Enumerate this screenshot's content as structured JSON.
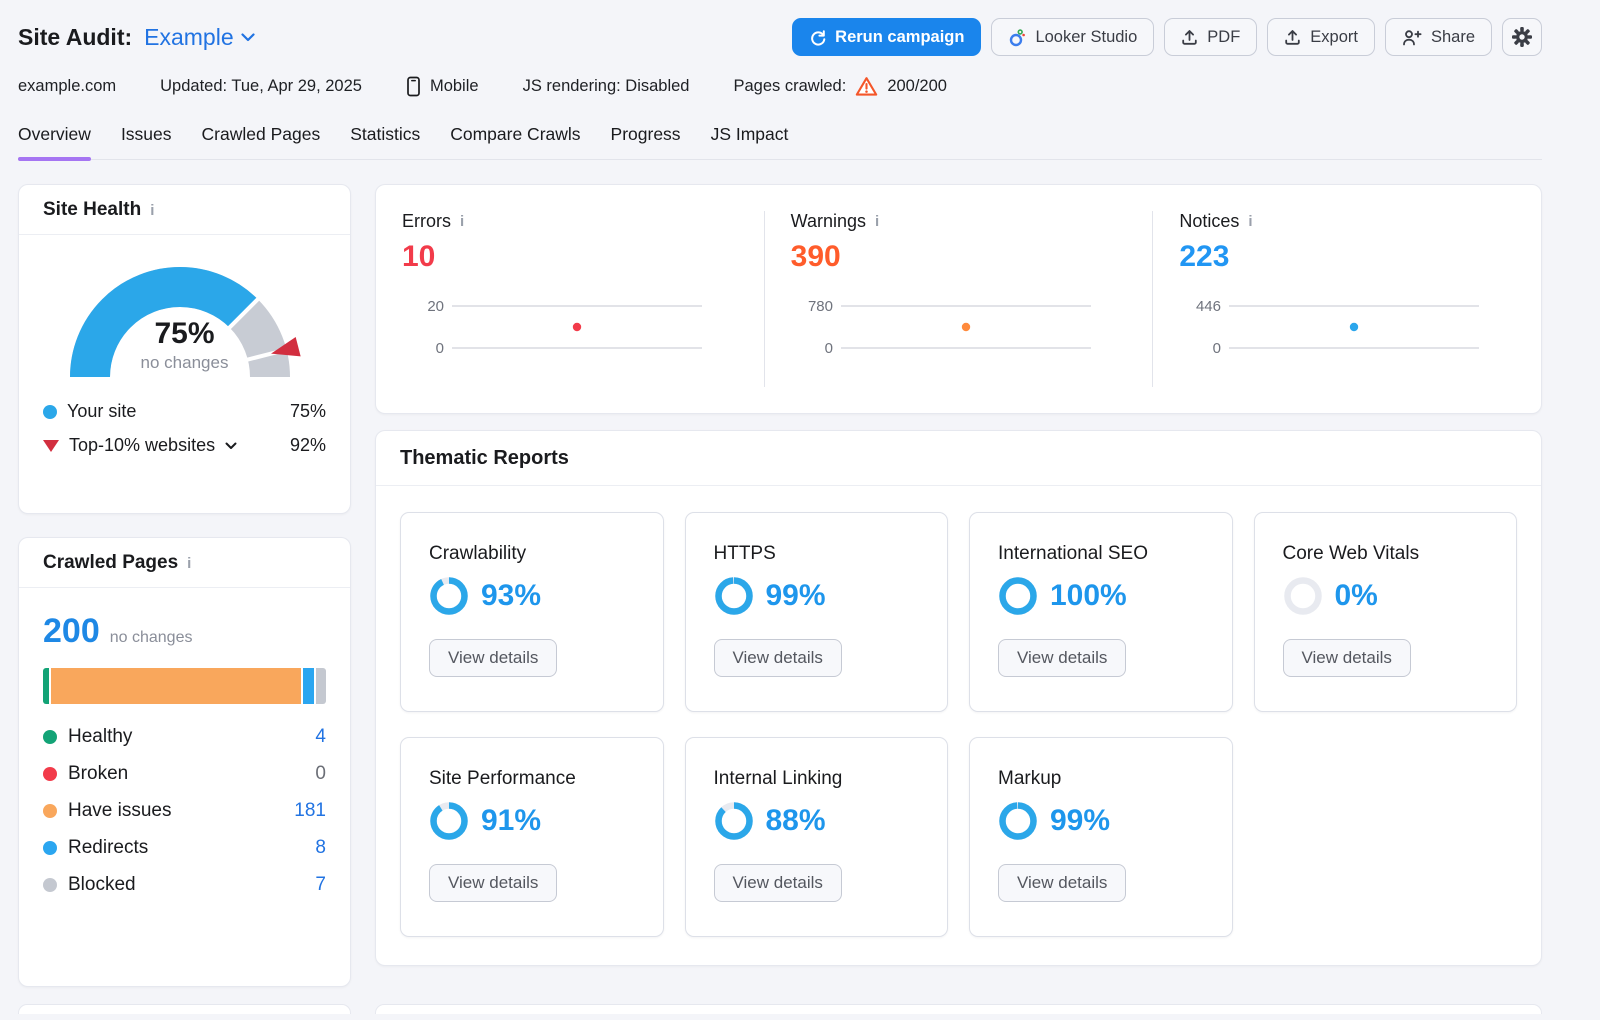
{
  "colors": {
    "primary_blue": "#1a85ec",
    "link_blue": "#2173e2",
    "sky_blue": "#2ba7e9",
    "gauge_track": "#c8ccd4",
    "donut_track": "#e8eaf0",
    "benchmark_red": "#d22e3f",
    "tab_purple": "#a575f2"
  },
  "header": {
    "title": "Site Audit:",
    "campaign": "Example",
    "domain": "example.com",
    "updated": "Updated: Tue, Apr 29, 2025",
    "device": "Mobile",
    "js_rendering": "JS rendering: Disabled",
    "pages_crawled_label": "Pages crawled:",
    "pages_crawled_value": "200/200",
    "buttons": {
      "rerun": "Rerun campaign",
      "looker": "Looker Studio",
      "pdf": "PDF",
      "export": "Export",
      "share": "Share"
    }
  },
  "tabs": [
    {
      "label": "Overview",
      "active": true
    },
    {
      "label": "Issues",
      "active": false
    },
    {
      "label": "Crawled Pages",
      "active": false
    },
    {
      "label": "Statistics",
      "active": false
    },
    {
      "label": "Compare Crawls",
      "active": false
    },
    {
      "label": "Progress",
      "active": false
    },
    {
      "label": "JS Impact",
      "active": false
    }
  ],
  "site_health": {
    "title": "Site Health",
    "score": "75%",
    "score_change": "no changes",
    "gauge": {
      "percent": 75,
      "benchmark": 92
    },
    "legend": [
      {
        "label": "Your site",
        "value": "75%",
        "marker": "blue-dot",
        "chevron": false
      },
      {
        "label": "Top-10% websites",
        "value": "92%",
        "marker": "red-triangle",
        "chevron": true
      }
    ]
  },
  "issues": [
    {
      "label": "Errors",
      "value": "10",
      "value_num": 10,
      "axis_top": "20",
      "axis_max": 20,
      "axis_bottom": "0",
      "number_color": "#f23b4a",
      "dot_color": "#f23b4a"
    },
    {
      "label": "Warnings",
      "value": "390",
      "value_num": 390,
      "axis_top": "780",
      "axis_max": 780,
      "axis_bottom": "0",
      "number_color": "#ff5c2b",
      "dot_color": "#ff8a3c"
    },
    {
      "label": "Notices",
      "value": "223",
      "value_num": 223,
      "axis_top": "446",
      "axis_max": 446,
      "axis_bottom": "0",
      "number_color": "#2196f3",
      "dot_color": "#2ba6ec"
    }
  ],
  "crawled_pages": {
    "title": "Crawled Pages",
    "total": "200",
    "total_num": 200,
    "change": "no changes",
    "bar": [
      {
        "name": "healthy",
        "value": 4,
        "color": "#13a376"
      },
      {
        "name": "have-issues",
        "value": 181,
        "color": "#f9a75c"
      },
      {
        "name": "redirects",
        "value": 8,
        "color": "#2ba6f0"
      },
      {
        "name": "blocked",
        "value": 7,
        "color": "#c4c8d0"
      }
    ],
    "legend": [
      {
        "label": "Healthy",
        "value": "4",
        "color": "#13a376",
        "link": true
      },
      {
        "label": "Broken",
        "value": "0",
        "color": "#f23b4a",
        "link": false
      },
      {
        "label": "Have issues",
        "value": "181",
        "color": "#f9a75c",
        "link": true
      },
      {
        "label": "Redirects",
        "value": "8",
        "color": "#2ba6f0",
        "link": true
      },
      {
        "label": "Blocked",
        "value": "7",
        "color": "#c4c8d0",
        "link": true
      }
    ]
  },
  "thematic": {
    "title": "Thematic Reports",
    "button_label": "View details",
    "cards": [
      {
        "title": "Crawlability",
        "percent": 93,
        "display": "93%"
      },
      {
        "title": "HTTPS",
        "percent": 99,
        "display": "99%"
      },
      {
        "title": "International SEO",
        "percent": 100,
        "display": "100%"
      },
      {
        "title": "Core Web Vitals",
        "percent": 0,
        "display": "0%"
      },
      {
        "title": "Site Performance",
        "percent": 91,
        "display": "91%"
      },
      {
        "title": "Internal Linking",
        "percent": 88,
        "display": "88%"
      },
      {
        "title": "Markup",
        "percent": 99,
        "display": "99%"
      }
    ]
  }
}
